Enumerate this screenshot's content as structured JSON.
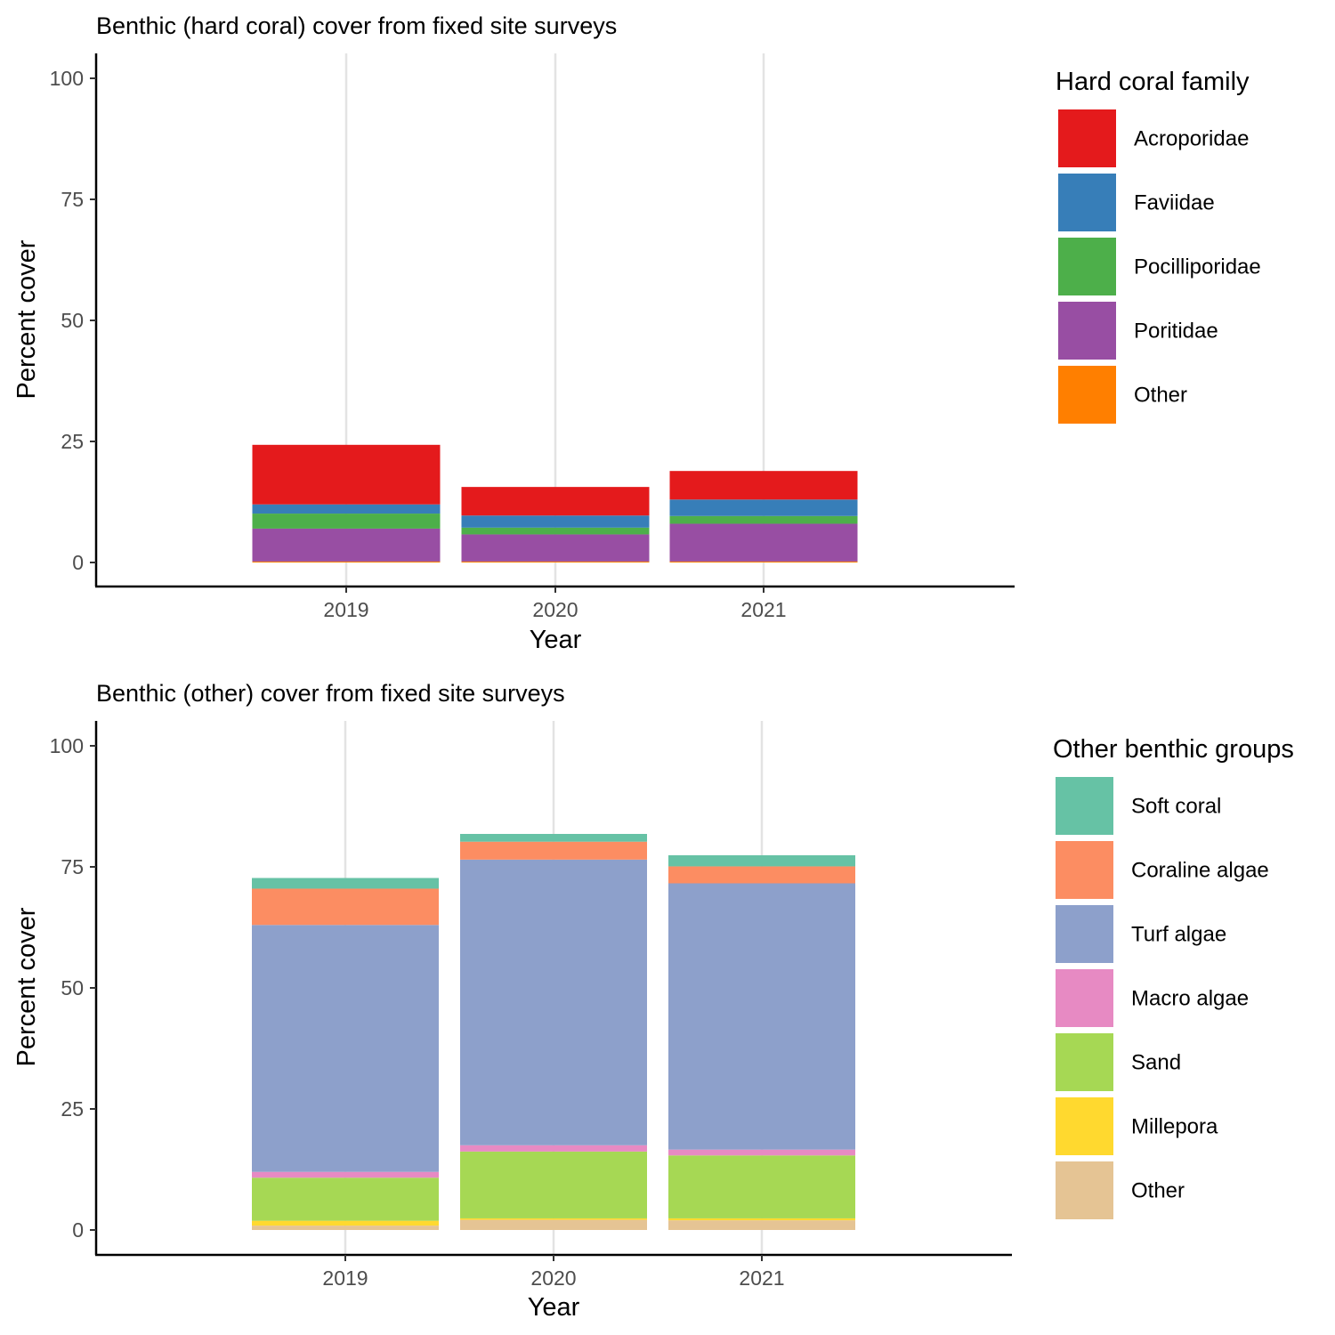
{
  "chart_data": [
    {
      "type": "bar",
      "stacked": true,
      "title": "Benthic (hard coral) cover from fixed site surveys",
      "xlabel": "Year",
      "ylabel": "Percent cover",
      "categories": [
        "2019",
        "2020",
        "2021"
      ],
      "ylim": [
        0,
        100
      ],
      "yticks": [
        "0",
        "25",
        "50",
        "75",
        "100"
      ],
      "grid": "vertical major gridlines at each year",
      "legend_title": "Hard coral family",
      "legend_position": "right",
      "series": [
        {
          "name": "Acroporidae",
          "color": "#e41a1c",
          "values": [
            12.3,
            5.9,
            5.9
          ]
        },
        {
          "name": "Faviidae",
          "color": "#377eb8",
          "values": [
            1.9,
            2.5,
            3.4
          ]
        },
        {
          "name": "Pocilliporidae",
          "color": "#4daf4a",
          "values": [
            3.1,
            1.4,
            1.6
          ]
        },
        {
          "name": "Poritidae",
          "color": "#984ea3",
          "values": [
            6.8,
            5.6,
            7.8
          ]
        },
        {
          "name": "Other",
          "color": "#ff7f00",
          "values": [
            0.2,
            0.2,
            0.2
          ]
        }
      ]
    },
    {
      "type": "bar",
      "stacked": true,
      "title": "Benthic (other) cover from fixed site surveys",
      "xlabel": "Year",
      "ylabel": "Percent cover",
      "categories": [
        "2019",
        "2020",
        "2021"
      ],
      "ylim": [
        0,
        100
      ],
      "yticks": [
        "0",
        "25",
        "50",
        "75",
        "100"
      ],
      "grid": "vertical major gridlines at each year",
      "legend_title": "Other benthic groups",
      "legend_position": "right",
      "series": [
        {
          "name": "Soft coral",
          "color": "#66c2a5",
          "values": [
            2.2,
            1.6,
            2.3
          ]
        },
        {
          "name": "Coraline algae",
          "color": "#fc8d62",
          "values": [
            7.5,
            3.7,
            3.5
          ]
        },
        {
          "name": "Turf algae",
          "color": "#8da0cb",
          "values": [
            51.0,
            59.0,
            55.0
          ]
        },
        {
          "name": "Macro algae",
          "color": "#e78ac3",
          "values": [
            1.2,
            1.3,
            1.2
          ]
        },
        {
          "name": "Sand",
          "color": "#a6d854",
          "values": [
            8.9,
            13.8,
            13.0
          ]
        },
        {
          "name": "Millepora",
          "color": "#ffd92f",
          "values": [
            1.0,
            0.3,
            0.4
          ]
        },
        {
          "name": "Other",
          "color": "#e5c494",
          "values": [
            0.9,
            2.1,
            2.0
          ]
        }
      ]
    }
  ]
}
